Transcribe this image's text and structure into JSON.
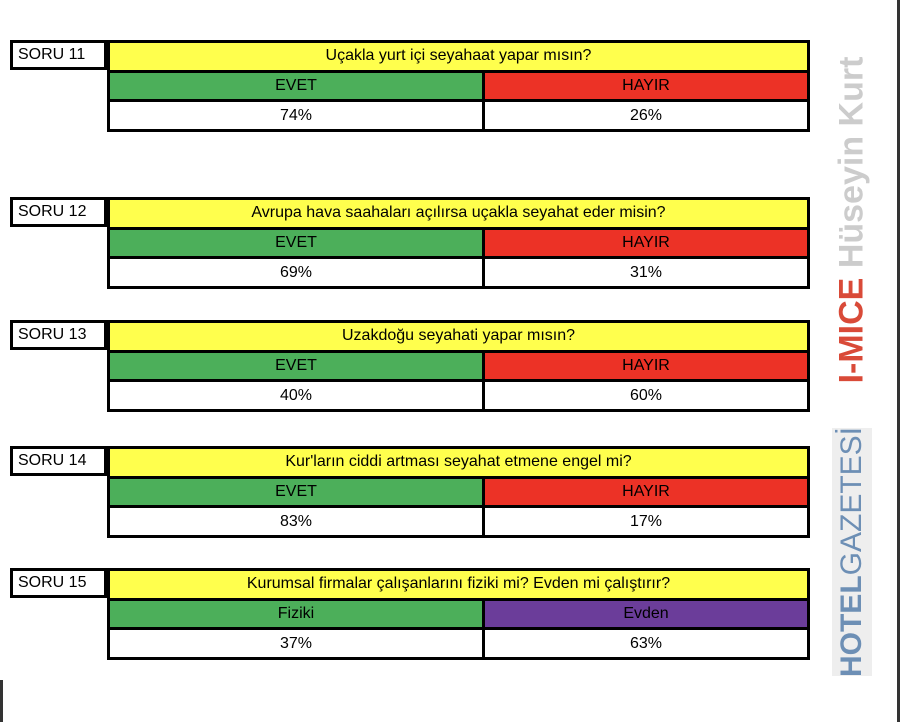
{
  "questions": [
    {
      "label": "SORU 11",
      "question": "Uçakla yurt içi seyahaat yapar mısın?",
      "opt_a": "EVET",
      "opt_b": "HAYIR",
      "val_a": "74%",
      "val_b": "26%"
    },
    {
      "label": "SORU 12",
      "question": "Avrupa hava saahaları açılırsa uçakla seyahat eder misin?",
      "opt_a": "EVET",
      "opt_b": "HAYIR",
      "val_a": "69%",
      "val_b": "31%"
    },
    {
      "label": "SORU 13",
      "question": "Uzakdoğu seyahati yapar mısın?",
      "opt_a": "EVET",
      "opt_b": "HAYIR",
      "val_a": "40%",
      "val_b": "60%"
    },
    {
      "label": "SORU 14",
      "question": "Kur'ların ciddi artması seyahat etmene engel mi?",
      "opt_a": "EVET",
      "opt_b": "HAYIR",
      "val_a": "83%",
      "val_b": "17%"
    },
    {
      "label": "SORU 15",
      "question": "Kurumsal firmalar çalışanlarını fiziki mi? Evden mi çalıştırır?",
      "opt_a": "Fiziki",
      "opt_b": "Evden",
      "val_a": "37%",
      "val_b": "63%"
    }
  ],
  "watermark": {
    "brand1": "I-MICE",
    "author": "Hüseyin Kurt",
    "brand2_bold": "HOTEL",
    "brand2_light": "GAZETESİ"
  }
}
